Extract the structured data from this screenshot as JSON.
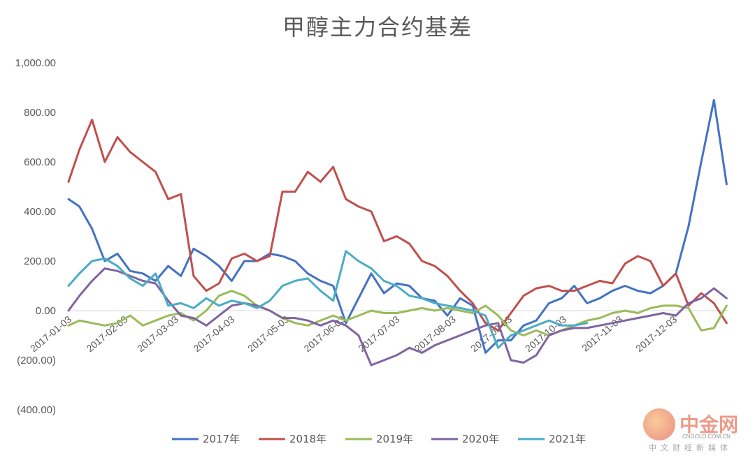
{
  "chart_data": {
    "type": "line",
    "title": "甲醇主力合约基差",
    "xlabel": "",
    "ylabel": "",
    "ylim": [
      -400,
      1000
    ],
    "yticks": [
      1000,
      800,
      600,
      400,
      200,
      0,
      -200,
      -400
    ],
    "ytick_labels": [
      "1,000.00",
      "800.00",
      "600.00",
      "400.00",
      "200.00",
      "0.00",
      "(200.00)",
      "(400.00)"
    ],
    "x_range": [
      "2017-01-01",
      "2017-12-31"
    ],
    "x_tick_labels": [
      "2017-01-03",
      "2017-02-03",
      "2017-03-03",
      "2017-04-03",
      "2017-05-03",
      "2017-06-03",
      "2017-07-03",
      "2017-08-03",
      "2017-09-03",
      "2017-10-03",
      "2017-11-03",
      "2017-12-03"
    ],
    "x_tick_dates": [
      "2017-01-03",
      "2017-02-03",
      "2017-03-03",
      "2017-04-03",
      "2017-05-03",
      "2017-06-03",
      "2017-07-03",
      "2017-08-03",
      "2017-09-03",
      "2017-10-03",
      "2017-11-03",
      "2017-12-03"
    ],
    "grid": false,
    "legend_position": "bottom",
    "series": [
      {
        "name": "2017年",
        "color": "#4472C4",
        "x": [
          "2017-01-01",
          "2017-01-07",
          "2017-01-14",
          "2017-01-21",
          "2017-01-28",
          "2017-02-04",
          "2017-02-11",
          "2017-02-18",
          "2017-02-25",
          "2017-03-04",
          "2017-03-11",
          "2017-03-18",
          "2017-03-25",
          "2017-04-01",
          "2017-04-08",
          "2017-04-15",
          "2017-04-22",
          "2017-04-29",
          "2017-05-06",
          "2017-05-13",
          "2017-05-20",
          "2017-05-27",
          "2017-06-03",
          "2017-06-10",
          "2017-06-17",
          "2017-06-24",
          "2017-07-01",
          "2017-07-08",
          "2017-07-15",
          "2017-07-22",
          "2017-07-29",
          "2017-08-05",
          "2017-08-12",
          "2017-08-19",
          "2017-08-26",
          "2017-09-02",
          "2017-09-09",
          "2017-09-16",
          "2017-09-23",
          "2017-09-30",
          "2017-10-07",
          "2017-10-14",
          "2017-10-21",
          "2017-10-28",
          "2017-11-04",
          "2017-11-11",
          "2017-11-18",
          "2017-11-25",
          "2017-12-02",
          "2017-12-09",
          "2017-12-16",
          "2017-12-23",
          "2017-12-30"
        ],
        "values": [
          450,
          420,
          330,
          200,
          230,
          160,
          150,
          120,
          180,
          140,
          250,
          220,
          180,
          120,
          200,
          200,
          230,
          220,
          200,
          150,
          120,
          100,
          -50,
          50,
          150,
          70,
          110,
          100,
          50,
          40,
          -20,
          50,
          20,
          -170,
          -120,
          -120,
          -60,
          -40,
          30,
          50,
          100,
          30,
          50,
          80,
          100,
          80,
          70,
          100,
          150,
          340,
          600,
          850,
          510
        ]
      },
      {
        "name": "2018年",
        "color": "#C0504D",
        "x": [
          "2017-01-01",
          "2017-01-07",
          "2017-01-14",
          "2017-01-21",
          "2017-01-28",
          "2017-02-04",
          "2017-02-11",
          "2017-02-18",
          "2017-02-25",
          "2017-03-04",
          "2017-03-11",
          "2017-03-18",
          "2017-03-25",
          "2017-04-01",
          "2017-04-08",
          "2017-04-15",
          "2017-04-22",
          "2017-04-29",
          "2017-05-06",
          "2017-05-13",
          "2017-05-20",
          "2017-05-27",
          "2017-06-03",
          "2017-06-10",
          "2017-06-17",
          "2017-06-24",
          "2017-07-01",
          "2017-07-08",
          "2017-07-15",
          "2017-07-22",
          "2017-07-29",
          "2017-08-05",
          "2017-08-12",
          "2017-08-19",
          "2017-08-26",
          "2017-09-02",
          "2017-09-09",
          "2017-09-16",
          "2017-09-23",
          "2017-09-30",
          "2017-10-07",
          "2017-10-14",
          "2017-10-21",
          "2017-10-28",
          "2017-11-04",
          "2017-11-11",
          "2017-11-18",
          "2017-11-25",
          "2017-12-02",
          "2017-12-09",
          "2017-12-16",
          "2017-12-23",
          "2017-12-30"
        ],
        "values": [
          520,
          650,
          770,
          600,
          700,
          640,
          600,
          560,
          450,
          470,
          140,
          80,
          110,
          210,
          230,
          200,
          220,
          480,
          480,
          560,
          520,
          580,
          450,
          420,
          400,
          280,
          300,
          270,
          200,
          180,
          140,
          80,
          30,
          -50,
          -80,
          -10,
          60,
          90,
          100,
          80,
          80,
          100,
          120,
          110,
          190,
          220,
          200,
          100,
          150,
          20,
          70,
          30,
          -50
        ]
      },
      {
        "name": "2019年",
        "color": "#9BBB59",
        "x": [
          "2017-01-01",
          "2017-01-07",
          "2017-01-14",
          "2017-01-21",
          "2017-01-28",
          "2017-02-04",
          "2017-02-11",
          "2017-02-18",
          "2017-02-25",
          "2017-03-04",
          "2017-03-11",
          "2017-03-18",
          "2017-03-25",
          "2017-04-01",
          "2017-04-08",
          "2017-04-15",
          "2017-04-22",
          "2017-04-29",
          "2017-05-06",
          "2017-05-13",
          "2017-05-20",
          "2017-05-27",
          "2017-06-03",
          "2017-06-10",
          "2017-06-17",
          "2017-06-24",
          "2017-07-01",
          "2017-07-08",
          "2017-07-15",
          "2017-07-22",
          "2017-07-29",
          "2017-08-05",
          "2017-08-12",
          "2017-08-19",
          "2017-08-26",
          "2017-09-02",
          "2017-09-09",
          "2017-09-16",
          "2017-09-23",
          "2017-09-30",
          "2017-10-07",
          "2017-10-14",
          "2017-10-21",
          "2017-10-28",
          "2017-11-04",
          "2017-11-11",
          "2017-11-18",
          "2017-11-25",
          "2017-12-02",
          "2017-12-09",
          "2017-12-16",
          "2017-12-23",
          "2017-12-30"
        ],
        "values": [
          -60,
          -40,
          -50,
          -60,
          -50,
          -20,
          -60,
          -40,
          -20,
          -10,
          -40,
          0,
          60,
          80,
          60,
          20,
          0,
          -30,
          -50,
          -60,
          -40,
          -20,
          -40,
          -20,
          0,
          -10,
          -10,
          0,
          10,
          0,
          10,
          0,
          -10,
          20,
          -20,
          -80,
          -100,
          -80,
          -100,
          -80,
          -60,
          -40,
          -30,
          -10,
          0,
          -10,
          10,
          20,
          20,
          10,
          -80,
          -70,
          20
        ]
      },
      {
        "name": "2020年",
        "color": "#8064A2",
        "x": [
          "2017-01-01",
          "2017-01-07",
          "2017-01-14",
          "2017-01-21",
          "2017-01-28",
          "2017-02-04",
          "2017-02-11",
          "2017-02-18",
          "2017-02-25",
          "2017-03-04",
          "2017-03-11",
          "2017-03-18",
          "2017-03-25",
          "2017-04-01",
          "2017-04-08",
          "2017-04-15",
          "2017-04-22",
          "2017-04-29",
          "2017-05-06",
          "2017-05-13",
          "2017-05-20",
          "2017-05-27",
          "2017-06-03",
          "2017-06-10",
          "2017-06-17",
          "2017-06-24",
          "2017-07-01",
          "2017-07-08",
          "2017-07-15",
          "2017-07-22",
          "2017-07-29",
          "2017-08-05",
          "2017-08-12",
          "2017-08-19",
          "2017-08-26",
          "2017-09-02",
          "2017-09-09",
          "2017-09-16",
          "2017-09-23",
          "2017-09-30",
          "2017-10-07",
          "2017-10-14",
          "2017-10-21",
          "2017-10-28",
          "2017-11-04",
          "2017-11-11",
          "2017-11-18",
          "2017-11-25",
          "2017-12-02",
          "2017-12-09",
          "2017-12-16",
          "2017-12-23",
          "2017-12-30"
        ],
        "values": [
          0,
          60,
          120,
          170,
          160,
          140,
          120,
          110,
          40,
          -20,
          -30,
          -60,
          -20,
          20,
          30,
          20,
          0,
          -30,
          -30,
          -40,
          -60,
          -40,
          -60,
          -100,
          -220,
          -200,
          -180,
          -150,
          -170,
          -140,
          -120,
          -100,
          -80,
          -60,
          -50,
          -200,
          -210,
          -180,
          -100,
          -80,
          -70,
          -70,
          -60,
          -50,
          -40,
          -30,
          -20,
          -10,
          -20,
          30,
          50,
          90,
          50
        ]
      },
      {
        "name": "2021年",
        "color": "#4BACC6",
        "x": [
          "2017-01-01",
          "2017-01-07",
          "2017-01-14",
          "2017-01-21",
          "2017-01-28",
          "2017-02-04",
          "2017-02-11",
          "2017-02-18",
          "2017-02-25",
          "2017-03-04",
          "2017-03-11",
          "2017-03-18",
          "2017-03-25",
          "2017-04-01",
          "2017-04-08",
          "2017-04-15",
          "2017-04-22",
          "2017-04-29",
          "2017-05-06",
          "2017-05-13",
          "2017-05-20",
          "2017-05-27",
          "2017-06-03",
          "2017-06-10",
          "2017-06-17",
          "2017-06-24",
          "2017-07-01",
          "2017-07-08",
          "2017-07-15",
          "2017-07-22",
          "2017-07-29",
          "2017-08-05",
          "2017-08-12",
          "2017-08-19",
          "2017-08-26",
          "2017-09-02",
          "2017-09-09",
          "2017-09-16",
          "2017-09-23",
          "2017-09-30",
          "2017-10-07",
          "2017-10-14"
        ],
        "values": [
          100,
          150,
          200,
          210,
          180,
          130,
          100,
          150,
          20,
          30,
          10,
          50,
          20,
          40,
          30,
          10,
          40,
          100,
          120,
          130,
          80,
          40,
          240,
          200,
          170,
          120,
          100,
          60,
          50,
          30,
          20,
          10,
          0,
          -20,
          -150,
          -100,
          -80,
          -60,
          -40,
          -60,
          -60,
          -50
        ]
      }
    ]
  },
  "watermark": {
    "name": "中金网",
    "url": "CNGOLD.COM.CN",
    "tagline": "中文财经新媒体"
  }
}
